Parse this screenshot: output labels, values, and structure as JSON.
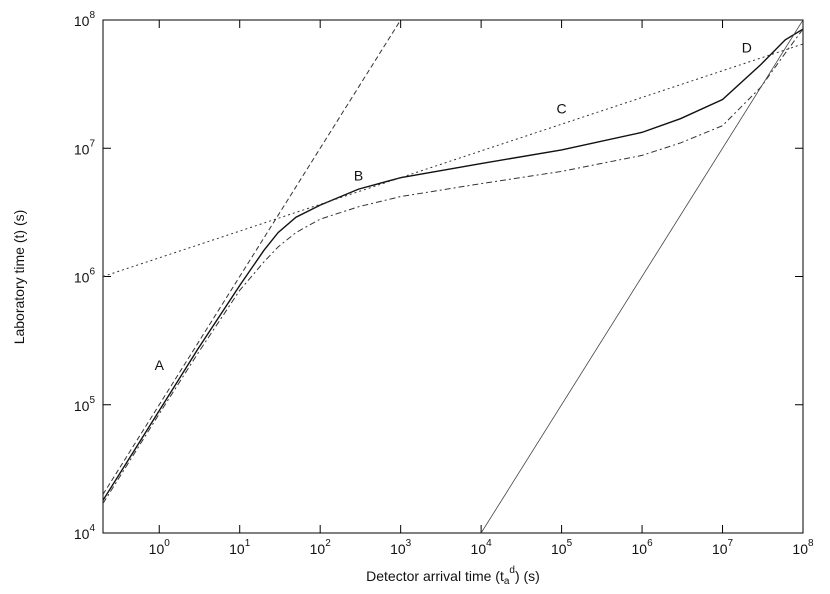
{
  "chart_data": {
    "type": "line",
    "x_label": "Detector arrival time (t_a^d) (s)",
    "y_label": "Laboratory time (t) (s)",
    "log_x": true,
    "log_y": true,
    "grid": false,
    "xlim": [
      0.2,
      100000000
    ],
    "ylim": [
      10000,
      100000000
    ],
    "xticks": [
      {
        "value": 1,
        "label": "10^0"
      },
      {
        "value": 10,
        "label": "10^1"
      },
      {
        "value": 100,
        "label": "10^2"
      },
      {
        "value": 1000,
        "label": "10^3"
      },
      {
        "value": 10000,
        "label": "10^4"
      },
      {
        "value": 100000,
        "label": "10^5"
      },
      {
        "value": 1000000,
        "label": "10^6"
      },
      {
        "value": 10000000,
        "label": "10^7"
      },
      {
        "value": 100000000,
        "label": "10^8"
      }
    ],
    "yticks": [
      {
        "value": 10000,
        "label": "10^4"
      },
      {
        "value": 100000,
        "label": "10^5"
      },
      {
        "value": 1000000,
        "label": "10^6"
      },
      {
        "value": 10000000,
        "label": "10^7"
      },
      {
        "value": 100000000,
        "label": "10^8"
      }
    ],
    "series": [
      {
        "style": "solid",
        "color": "#111111",
        "x": [
          0.2,
          1,
          3,
          10,
          20,
          30,
          50,
          100,
          300,
          1000,
          10000,
          100000,
          1000000,
          3000000,
          10000000,
          30000000,
          60000000,
          100000000
        ],
        "values": [
          18000,
          90000,
          270000,
          850000,
          1600000,
          2200000,
          2900000,
          3600000,
          4800000,
          5900000,
          7600000,
          9700000,
          13300000,
          17000000,
          24000000,
          45000000,
          70000000,
          85000000
        ]
      },
      {
        "style": "dashdot",
        "color": "#333333",
        "x": [
          0.2,
          1,
          3,
          10,
          20,
          30,
          50,
          100,
          300,
          1000,
          10000,
          100000,
          1000000,
          3000000,
          10000000,
          30000000,
          60000000,
          100000000
        ],
        "values": [
          17000,
          85000,
          250000,
          780000,
          1300000,
          1700000,
          2200000,
          2800000,
          3500000,
          4200000,
          5300000,
          6600000,
          8800000,
          11000000,
          15000000,
          30000000,
          55000000,
          85000000
        ]
      },
      {
        "style": "dashed",
        "color": "#333333",
        "x": [
          0.2,
          1000
        ],
        "values": [
          20000,
          100000000
        ]
      },
      {
        "style": "dotted",
        "color": "#333333",
        "x": [
          0.2,
          100000000
        ],
        "values": [
          1000000,
          65000000
        ]
      },
      {
        "style": "thin",
        "color": "#444444",
        "x": [
          10000,
          100000000
        ],
        "values": [
          10000,
          100000000
        ]
      }
    ],
    "annotations": [
      {
        "text": "A",
        "x": 1,
        "y": 200000
      },
      {
        "text": "B",
        "x": 300,
        "y": 6000000
      },
      {
        "text": "C",
        "x": 100000,
        "y": 20000000
      },
      {
        "text": "D",
        "x": 20000000,
        "y": 60000000
      }
    ]
  }
}
